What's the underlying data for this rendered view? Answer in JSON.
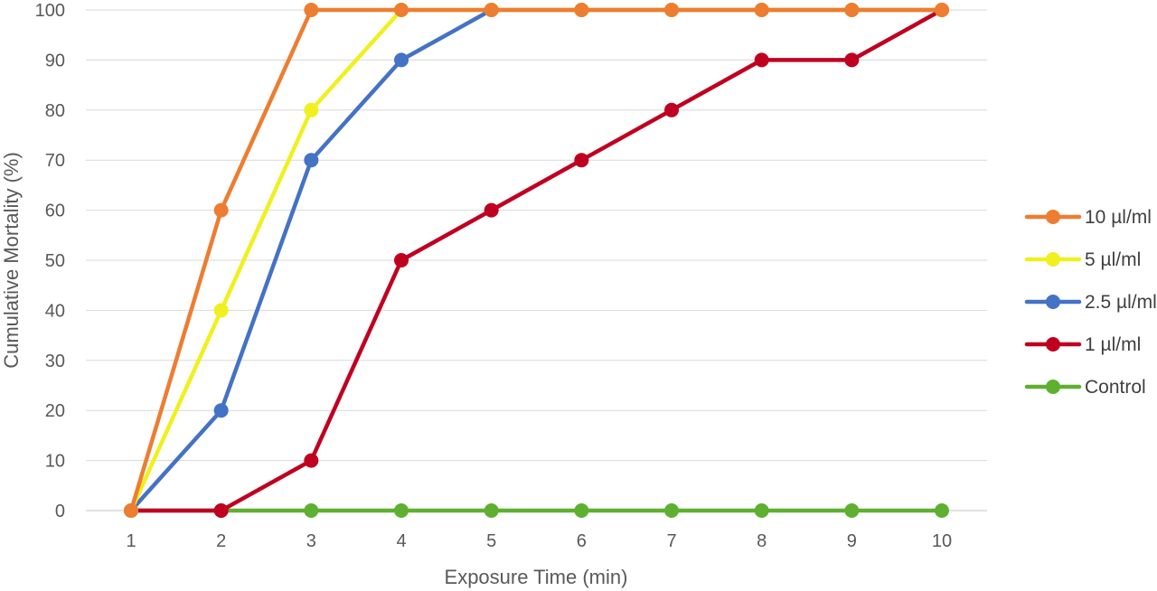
{
  "chart_data": {
    "type": "line",
    "title": "",
    "xlabel": "Exposure Time (min)",
    "ylabel": "Cumulative Mortality (%)",
    "x": [
      1,
      2,
      3,
      4,
      5,
      6,
      7,
      8,
      9,
      10
    ],
    "ylim": [
      0,
      100
    ],
    "yticks": [
      0,
      10,
      20,
      30,
      40,
      50,
      60,
      70,
      80,
      90,
      100
    ],
    "grid": true,
    "legend_position": "right",
    "series": [
      {
        "name": "10 µl/ml",
        "color": "#ed7d31",
        "values": [
          0,
          60,
          100,
          100,
          100,
          100,
          100,
          100,
          100,
          100
        ]
      },
      {
        "name": "5 µl/ml",
        "color": "#f0f020",
        "values": [
          0,
          40,
          80,
          100,
          100,
          100,
          100,
          100,
          100,
          100
        ]
      },
      {
        "name": "2.5 µl/ml",
        "color": "#4472c4",
        "values": [
          0,
          20,
          70,
          90,
          100,
          100,
          100,
          100,
          100,
          100
        ]
      },
      {
        "name": "1 µl/ml",
        "color": "#c00020",
        "values": [
          0,
          0,
          10,
          50,
          60,
          70,
          80,
          90,
          90,
          100
        ]
      },
      {
        "name": "Control",
        "color": "#5fb030",
        "values": [
          0,
          0,
          0,
          0,
          0,
          0,
          0,
          0,
          0,
          0
        ]
      }
    ]
  }
}
